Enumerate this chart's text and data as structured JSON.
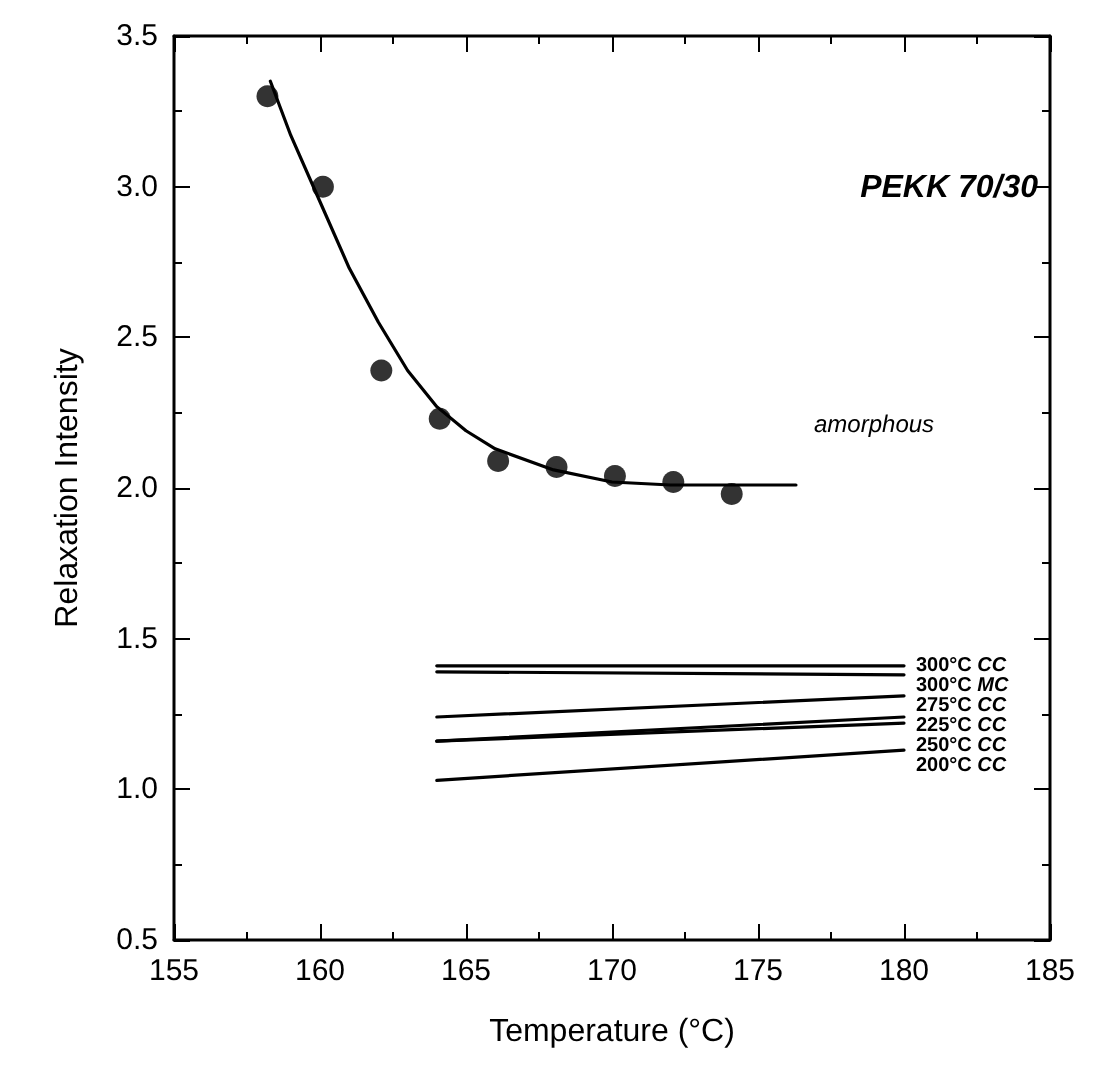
{
  "chart_data": {
    "type": "scatter",
    "xlabel": "Temperature (°C)",
    "ylabel": "Relaxation Intensity",
    "xlim": [
      155,
      185
    ],
    "xticks": [
      155,
      160,
      165,
      170,
      175,
      180,
      185
    ],
    "ylim": [
      0.5,
      3.5
    ],
    "yticks": [
      0.5,
      {
        "value": 1,
        "label": "1.0"
      },
      1.5,
      {
        "value": 2,
        "label": "2.0"
      },
      2.5,
      {
        "value": 3,
        "label": "3.0"
      },
      3.5
    ],
    "grid": false,
    "annotations": [
      "PEKK 70/30",
      "amorphous"
    ],
    "series": [
      {
        "marker": "circle",
        "color": "#000000",
        "x": [
          158.2,
          160.1,
          162.1,
          164.1,
          166.1,
          168.1,
          170.1,
          172.1,
          174.1
        ],
        "values": [
          3.3,
          3.0,
          2.39,
          2.23,
          2.09,
          2.07,
          2.04,
          2.02,
          1.98
        ]
      },
      {
        "type": "line",
        "marker": "none",
        "color": "#000000",
        "x": [
          158.3,
          159,
          160,
          161,
          162,
          163,
          164,
          165,
          166,
          168,
          170,
          172,
          174,
          176.3
        ],
        "values": [
          3.35,
          3.17,
          2.95,
          2.73,
          2.55,
          2.39,
          2.27,
          2.19,
          2.13,
          2.06,
          2.02,
          2.01,
          2.01,
          2.01
        ]
      },
      {
        "type": "line",
        "marker": "none",
        "name": "300°C CC",
        "color": "#000000",
        "x": [
          164,
          180
        ],
        "values": [
          1.41,
          1.41
        ]
      },
      {
        "type": "line",
        "marker": "none",
        "name": "300°C MC",
        "color": "#000000",
        "x": [
          164,
          180
        ],
        "values": [
          1.39,
          1.38
        ]
      },
      {
        "type": "line",
        "marker": "none",
        "name": "275°C CC",
        "color": "#000000",
        "x": [
          164,
          180
        ],
        "values": [
          1.24,
          1.31
        ]
      },
      {
        "type": "line",
        "marker": "none",
        "name": "225°C CC",
        "color": "#000000",
        "x": [
          164,
          180
        ],
        "values": [
          1.16,
          1.24
        ]
      },
      {
        "type": "line",
        "marker": "none",
        "name": "250°C CC",
        "color": "#000000",
        "x": [
          164,
          180
        ],
        "values": [
          1.16,
          1.22
        ]
      },
      {
        "type": "line",
        "marker": "none",
        "name": "200°C CC",
        "color": "#000000",
        "x": [
          164,
          180
        ],
        "values": [
          1.03,
          1.13
        ]
      }
    ]
  }
}
